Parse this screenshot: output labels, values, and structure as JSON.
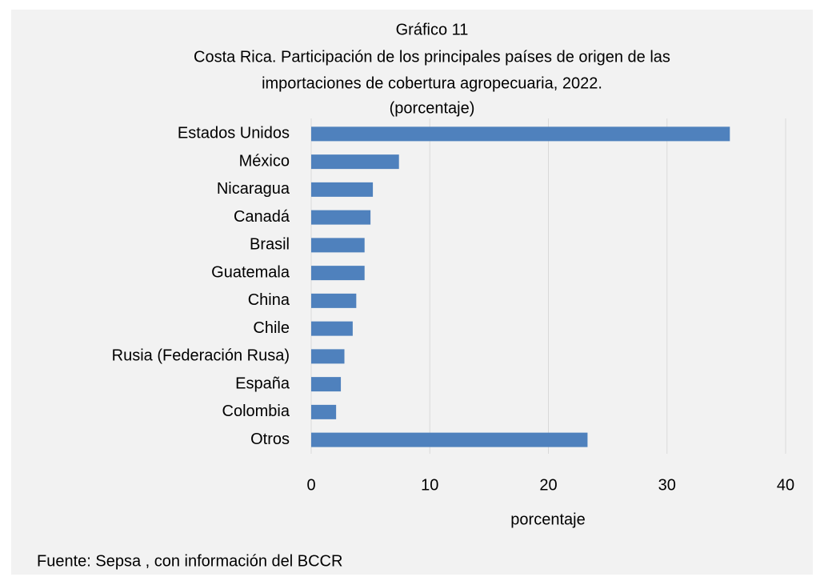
{
  "chart_data": {
    "type": "bar",
    "title": "Gráfico 11",
    "subtitle": [
      "Costa Rica.  Participación de los principales países  de origen de las",
      "importaciones de cobertura agropecuaria, 2022.",
      "(porcentaje)"
    ],
    "categories": [
      "Estados Unidos",
      "México",
      "Nicaragua",
      "Canadá",
      "Brasil",
      "Guatemala",
      "China",
      "Chile",
      "Rusia (Federación Rusa)",
      "España",
      "Colombia",
      "Otros"
    ],
    "values": [
      35.3,
      7.4,
      5.2,
      5.0,
      4.5,
      4.5,
      3.8,
      3.5,
      2.8,
      2.5,
      2.1,
      23.3
    ],
    "color": "#4f81bd",
    "xlim": [
      0,
      40
    ],
    "xticks": [
      0,
      10,
      20,
      30,
      40
    ],
    "grid": true,
    "xlabel": "porcentaje",
    "source": "Fuente: Sepsa , con información del BCCR"
  }
}
